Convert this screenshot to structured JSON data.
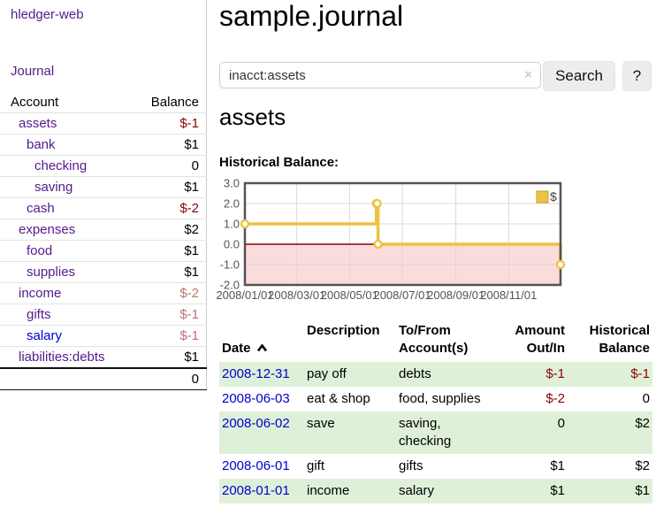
{
  "app": {
    "title": "hledger-web",
    "nav": {
      "journal": "Journal"
    }
  },
  "sidebar": {
    "header": {
      "account": "Account",
      "balance": "Balance"
    },
    "accounts": [
      {
        "name": "assets",
        "balance": "$-1"
      },
      {
        "name": "bank",
        "balance": "$1"
      },
      {
        "name": "checking",
        "balance": "0"
      },
      {
        "name": "saving",
        "balance": "$1"
      },
      {
        "name": "cash",
        "balance": "$-2"
      },
      {
        "name": "expenses",
        "balance": "$2"
      },
      {
        "name": "food",
        "balance": "$1"
      },
      {
        "name": "supplies",
        "balance": "$1"
      },
      {
        "name": "income",
        "balance": "$-2"
      },
      {
        "name": "gifts",
        "balance": "$-1"
      },
      {
        "name": "salary",
        "balance": "$-1"
      },
      {
        "name": "liabilities:debts",
        "balance": "$1"
      }
    ],
    "total": "0"
  },
  "main": {
    "title": "sample.journal",
    "search": {
      "value": "inacct:assets",
      "clear_icon": "×",
      "button": "Search",
      "help": "?"
    },
    "account_heading": "assets",
    "chart_heading": "Historical Balance:",
    "register": {
      "headers": {
        "date": "Date",
        "description": "Description",
        "tofrom": "To/From\nAccount(s)",
        "amount": "Amount\nOut/In",
        "balance": "Historical\nBalance"
      },
      "rows": [
        {
          "date": "2008-12-31",
          "description": "pay off",
          "accounts": "debts",
          "amount": "$-1",
          "balance": "$-1"
        },
        {
          "date": "2008-06-03",
          "description": "eat & shop",
          "accounts": "food, supplies",
          "amount": "$-2",
          "balance": "0"
        },
        {
          "date": "2008-06-02",
          "description": "save",
          "accounts": "saving,\nchecking",
          "amount": "0",
          "balance": "$2"
        },
        {
          "date": "2008-06-01",
          "description": "gift",
          "accounts": "gifts",
          "amount": "$1",
          "balance": "$2"
        },
        {
          "date": "2008-01-01",
          "description": "income",
          "accounts": "salary",
          "amount": "$1",
          "balance": "$1"
        }
      ]
    }
  },
  "chart_data": {
    "type": "line",
    "title": "Historical Balance:",
    "step": true,
    "x": [
      "2008-01-01",
      "2008-06-01",
      "2008-06-02",
      "2008-06-03",
      "2008-12-31"
    ],
    "series": [
      {
        "name": "$",
        "color": "#edc240",
        "values": [
          1,
          2,
          2,
          0,
          -1
        ]
      }
    ],
    "xlabel": "",
    "ylabel": "",
    "ylim": [
      -2,
      3
    ],
    "xrange": [
      "2008-01-01",
      "2008-12-31"
    ],
    "ytick_labels": [
      "3.0",
      "2.0",
      "1.0",
      "0.0",
      "-1.0",
      "-2.0"
    ],
    "xtick_labels": [
      "2008/01/01",
      "2008/03/01",
      "2008/05/01",
      "2008/07/01",
      "2008/09/01",
      "2008/11/01"
    ],
    "grid": true,
    "legend": {
      "position": "top-right",
      "label": "$"
    },
    "zero_line_color": "#8b0000",
    "negative_area_color": "#fbdcdc",
    "border_color": "#545454",
    "grid_color": "#d9d9d9",
    "marker_fill": "#ffffff"
  },
  "colors": {
    "link_visited_purple": "#551a8b",
    "link_blue": "#0000cc",
    "negative_strong": "#8b0000",
    "negative_light": "#c17171",
    "row_green": "#dff0d8",
    "series_gold": "#edc240",
    "divider_gray": "#cccccc"
  }
}
